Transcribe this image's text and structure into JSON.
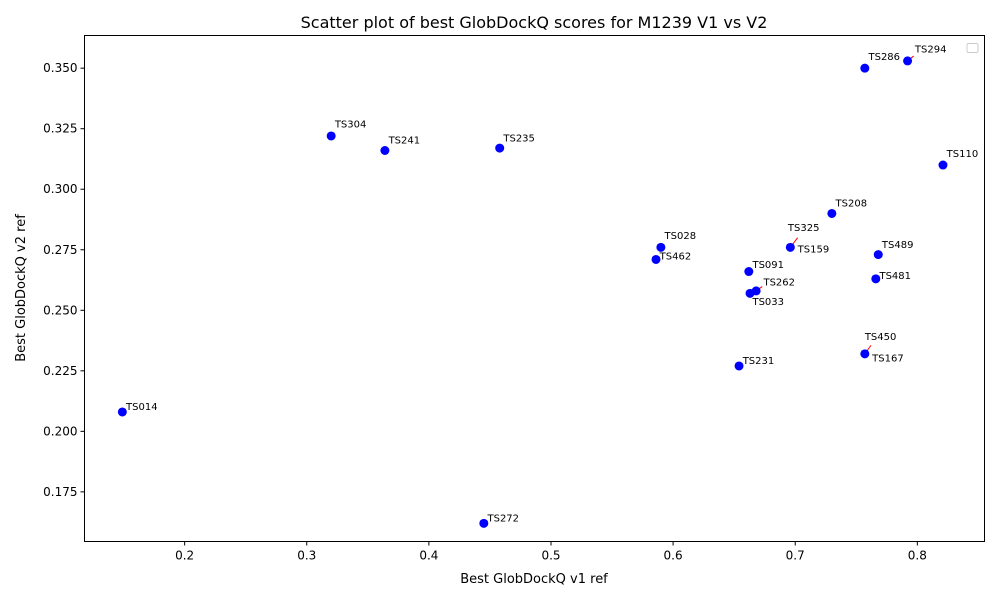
{
  "chart_data": {
    "type": "scatter",
    "title": "Scatter plot of best GlobDockQ scores for M1239 V1 vs V2",
    "xlabel": "Best GlobDockQ v1 ref",
    "ylabel": "Best GlobDockQ v2 ref",
    "xlim": [
      0.118,
      0.855
    ],
    "ylim": [
      0.1545,
      0.3635
    ],
    "xticks": [
      0.2,
      0.3,
      0.4,
      0.5,
      0.6,
      0.7,
      0.8
    ],
    "xtick_labels": [
      "0.2",
      "0.3",
      "0.4",
      "0.5",
      "0.6",
      "0.7",
      "0.8"
    ],
    "yticks": [
      0.175,
      0.2,
      0.225,
      0.25,
      0.275,
      0.3,
      0.325,
      0.35
    ],
    "ytick_labels": [
      "0.175",
      "0.200",
      "0.225",
      "0.250",
      "0.275",
      "0.300",
      "0.325",
      "0.350"
    ],
    "grid": false,
    "legend": "top-right",
    "point_color": "#0000ff",
    "connector_color": "#ff0000",
    "points": [
      {
        "label": "TS294",
        "x": 0.792,
        "y": 0.353,
        "label_dx": 0.006,
        "label_dy": 0.0034
      },
      {
        "label": "TS286",
        "x": 0.757,
        "y": 0.35,
        "label_dx": 0.003,
        "label_dy": 0.0034
      },
      {
        "label": "TS304",
        "x": 0.32,
        "y": 0.322,
        "label_dx": 0.003,
        "label_dy": 0.0034
      },
      {
        "label": "TS241",
        "x": 0.364,
        "y": 0.316,
        "label_dx": 0.003,
        "label_dy": 0.0028
      },
      {
        "label": "TS235",
        "x": 0.458,
        "y": 0.317,
        "label_dx": 0.003,
        "label_dy": 0.0028
      },
      {
        "label": "TS110",
        "x": 0.821,
        "y": 0.31,
        "label_dx": 0.003,
        "label_dy": 0.0034
      },
      {
        "label": "TS208",
        "x": 0.73,
        "y": 0.29,
        "label_dx": 0.003,
        "label_dy": 0.0028
      },
      {
        "label": "TS325",
        "x": 0.696,
        "y": 0.276,
        "label_dx": -0.002,
        "label_dy": 0.0068
      },
      {
        "label": "TS159",
        "x": 0.696,
        "y": 0.276,
        "label_dx": 0.006,
        "label_dy": -0.0022
      },
      {
        "label": "TS028",
        "x": 0.59,
        "y": 0.276,
        "label_dx": 0.003,
        "label_dy": 0.0034
      },
      {
        "label": "TS462",
        "x": 0.586,
        "y": 0.271,
        "label_dx": 0.003,
        "label_dy": 0.0
      },
      {
        "label": "TS489",
        "x": 0.768,
        "y": 0.273,
        "label_dx": 0.003,
        "label_dy": 0.0028
      },
      {
        "label": "TS481",
        "x": 0.766,
        "y": 0.263,
        "label_dx": 0.003,
        "label_dy": 0.0
      },
      {
        "label": "TS091",
        "x": 0.662,
        "y": 0.266,
        "label_dx": 0.003,
        "label_dy": 0.0014
      },
      {
        "label": "TS262",
        "x": 0.668,
        "y": 0.258,
        "label_dx": 0.006,
        "label_dy": 0.0022
      },
      {
        "label": "TS033",
        "x": 0.663,
        "y": 0.257,
        "label_dx": 0.002,
        "label_dy": -0.0048
      },
      {
        "label": "TS450",
        "x": 0.757,
        "y": 0.232,
        "label_dx": 0.0,
        "label_dy": 0.0058
      },
      {
        "label": "TS167",
        "x": 0.757,
        "y": 0.232,
        "label_dx": 0.006,
        "label_dy": -0.0032
      },
      {
        "label": "TS231",
        "x": 0.654,
        "y": 0.227,
        "label_dx": 0.003,
        "label_dy": 0.0008
      },
      {
        "label": "TS014",
        "x": 0.149,
        "y": 0.208,
        "label_dx": 0.003,
        "label_dy": 0.0008
      },
      {
        "label": "TS272",
        "x": 0.445,
        "y": 0.162,
        "label_dx": 0.003,
        "label_dy": 0.0008
      }
    ],
    "connectors": [
      {
        "x1": 0.792,
        "y1": 0.353,
        "x2": 0.797,
        "y2": 0.355
      },
      {
        "x1": 0.696,
        "y1": 0.276,
        "x2": 0.702,
        "y2": 0.28
      },
      {
        "x1": 0.668,
        "y1": 0.258,
        "x2": 0.673,
        "y2": 0.2598
      },
      {
        "x1": 0.757,
        "y1": 0.232,
        "x2": 0.762,
        "y2": 0.2355
      }
    ]
  }
}
